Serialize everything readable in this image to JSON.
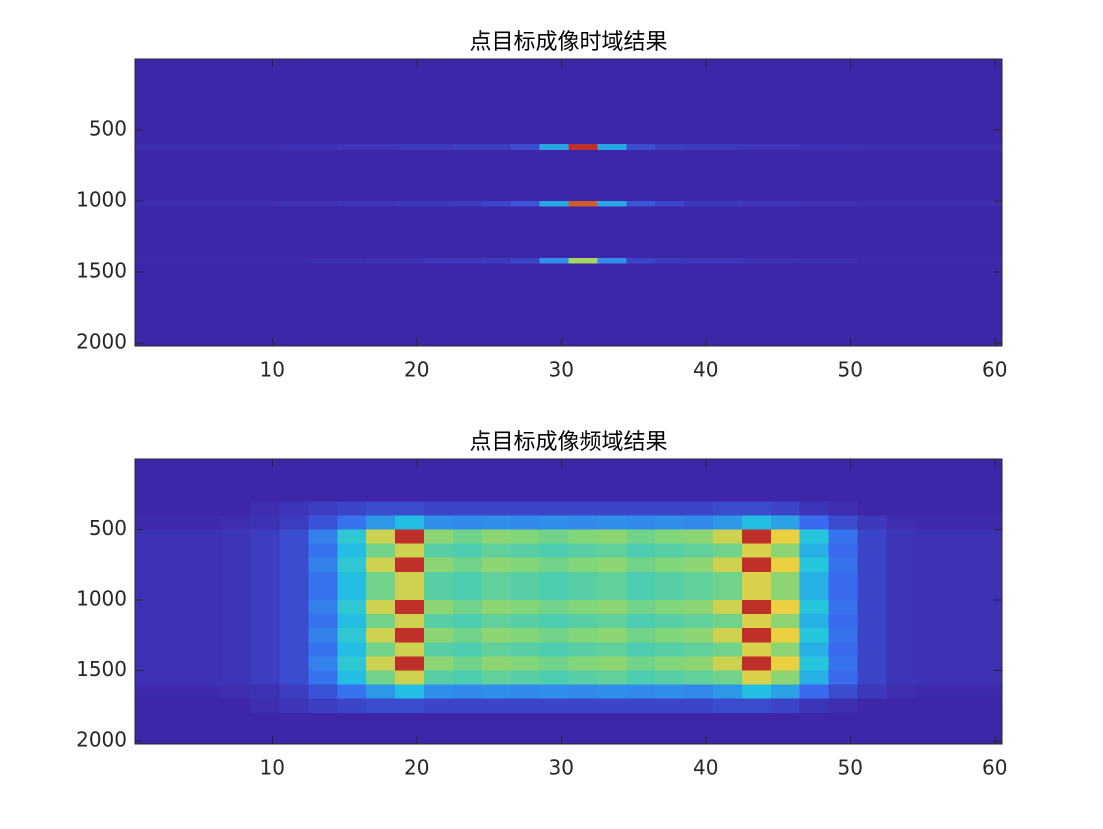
{
  "chart_data": [
    {
      "type": "heatmap",
      "title": "点目标成像时域结果",
      "xlim": [
        0.5,
        60.5
      ],
      "ylim": [
        0,
        2021
      ],
      "y_reversed": true,
      "xticks": [
        10,
        20,
        30,
        40,
        50,
        60
      ],
      "yticks": [
        500,
        1000,
        1500,
        2000
      ],
      "colormap": [
        "#3e26a8",
        "#3a6cf0",
        "#21c4e0",
        "#7fd67a",
        "#f5d03a",
        "#c0302a"
      ],
      "x_bins": [
        0.5,
        2.5,
        4.5,
        6.5,
        8.5,
        10.5,
        12.5,
        14.5,
        16.5,
        18.5,
        20.5,
        22.5,
        24.5,
        26.5,
        28.5,
        30.5,
        32.5,
        34.5,
        36.5,
        38.5,
        40.5,
        42.5,
        44.5,
        46.5,
        48.5,
        50.5,
        52.5,
        54.5,
        56.5,
        58.5,
        60.5
      ],
      "y_bins": [
        0,
        600,
        640,
        1000,
        1040,
        1400,
        1440,
        2021
      ],
      "z": [
        [
          0,
          0,
          0,
          0,
          0,
          0,
          0,
          0,
          0,
          0,
          0,
          0,
          0,
          0,
          0,
          0,
          0,
          0,
          0,
          0,
          0,
          0,
          0,
          0,
          0,
          0,
          0,
          0,
          0,
          0
        ],
        [
          0.02,
          0.02,
          0.02,
          0.02,
          0.02,
          0.03,
          0.03,
          0.04,
          0.04,
          0.05,
          0.05,
          0.06,
          0.06,
          0.1,
          0.3,
          0.9,
          0.3,
          0.1,
          0.06,
          0.05,
          0.05,
          0.04,
          0.04,
          0.03,
          0.03,
          0.02,
          0.02,
          0.02,
          0.02,
          0.02
        ],
        [
          0,
          0,
          0,
          0,
          0,
          0,
          0,
          0,
          0,
          0,
          0,
          0,
          0,
          0,
          0,
          0,
          0,
          0,
          0,
          0,
          0,
          0,
          0,
          0,
          0,
          0,
          0,
          0,
          0,
          0
        ],
        [
          0.02,
          0.02,
          0.02,
          0.02,
          0.02,
          0.03,
          0.03,
          0.04,
          0.04,
          0.05,
          0.05,
          0.06,
          0.08,
          0.12,
          0.3,
          0.85,
          0.3,
          0.12,
          0.08,
          0.05,
          0.05,
          0.04,
          0.04,
          0.03,
          0.03,
          0.02,
          0.02,
          0.02,
          0.02,
          0.02
        ],
        [
          0,
          0,
          0,
          0,
          0,
          0,
          0,
          0,
          0,
          0,
          0,
          0,
          0,
          0,
          0,
          0,
          0,
          0,
          0,
          0,
          0,
          0,
          0,
          0,
          0,
          0,
          0,
          0,
          0,
          0
        ],
        [
          0.01,
          0.01,
          0.01,
          0.01,
          0.01,
          0.01,
          0.02,
          0.02,
          0.03,
          0.03,
          0.04,
          0.04,
          0.05,
          0.08,
          0.25,
          0.6,
          0.25,
          0.08,
          0.05,
          0.04,
          0.04,
          0.03,
          0.03,
          0.02,
          0.02,
          0.01,
          0.01,
          0.01,
          0.01,
          0.01
        ],
        [
          0,
          0,
          0,
          0,
          0,
          0,
          0,
          0,
          0,
          0,
          0,
          0,
          0,
          0,
          0,
          0,
          0,
          0,
          0,
          0,
          0,
          0,
          0,
          0,
          0,
          0,
          0,
          0,
          0,
          0
        ]
      ]
    },
    {
      "type": "heatmap",
      "title": "点目标成像频域结果",
      "xlim": [
        0.5,
        60.5
      ],
      "ylim": [
        0,
        2021
      ],
      "y_reversed": true,
      "xticks": [
        10,
        20,
        30,
        40,
        50,
        60
      ],
      "yticks": [
        500,
        1000,
        1500,
        2000
      ],
      "colormap": [
        "#3e26a8",
        "#3a6cf0",
        "#21c4e0",
        "#7fd67a",
        "#f5d03a",
        "#c0302a"
      ],
      "x_bins": [
        0.5,
        2.5,
        4.5,
        6.5,
        8.5,
        10.5,
        12.5,
        14.5,
        16.5,
        18.5,
        20.5,
        22.5,
        24.5,
        26.5,
        28.5,
        30.5,
        32.5,
        34.5,
        36.5,
        38.5,
        40.5,
        42.5,
        44.5,
        46.5,
        48.5,
        50.5,
        52.5,
        54.5,
        56.5,
        58.5,
        60.5
      ],
      "y_bins": [
        0,
        100,
        200,
        300,
        400,
        500,
        600,
        700,
        800,
        900,
        1000,
        1100,
        1200,
        1300,
        1400,
        1500,
        1600,
        1700,
        1800,
        1900,
        2021
      ],
      "z": [
        [
          0.02,
          0.02,
          0.02,
          0.02,
          0.02,
          0.02,
          0.02,
          0.02,
          0.02,
          0.02,
          0.02,
          0.02,
          0.02,
          0.02,
          0.02,
          0.02,
          0.02,
          0.02,
          0.02,
          0.02,
          0.02,
          0.02,
          0.02,
          0.02,
          0.02,
          0.02,
          0.02,
          0.02,
          0.02,
          0.02
        ],
        [
          0.02,
          0.02,
          0.02,
          0.02,
          0.02,
          0.02,
          0.02,
          0.02,
          0.02,
          0.02,
          0.02,
          0.02,
          0.02,
          0.02,
          0.02,
          0.02,
          0.02,
          0.02,
          0.02,
          0.02,
          0.02,
          0.02,
          0.02,
          0.02,
          0.02,
          0.02,
          0.02,
          0.02,
          0.02,
          0.02
        ],
        [
          0.02,
          0.02,
          0.02,
          0.02,
          0.02,
          0.02,
          0.02,
          0.02,
          0.02,
          0.02,
          0.02,
          0.02,
          0.02,
          0.02,
          0.02,
          0.02,
          0.02,
          0.02,
          0.02,
          0.02,
          0.02,
          0.02,
          0.02,
          0.02,
          0.02,
          0.02,
          0.02,
          0.02,
          0.02,
          0.02
        ],
        [
          0.02,
          0.02,
          0.02,
          0.02,
          0.04,
          0.06,
          0.08,
          0.1,
          0.12,
          0.12,
          0.1,
          0.1,
          0.1,
          0.1,
          0.1,
          0.1,
          0.1,
          0.1,
          0.1,
          0.1,
          0.12,
          0.12,
          0.1,
          0.06,
          0.04,
          0.02,
          0.02,
          0.02,
          0.02,
          0.02
        ],
        [
          0.03,
          0.03,
          0.03,
          0.04,
          0.05,
          0.08,
          0.14,
          0.22,
          0.3,
          0.38,
          0.28,
          0.27,
          0.28,
          0.27,
          0.28,
          0.27,
          0.28,
          0.27,
          0.28,
          0.27,
          0.3,
          0.38,
          0.32,
          0.2,
          0.12,
          0.07,
          0.04,
          0.03,
          0.03,
          0.03
        ],
        [
          0.05,
          0.05,
          0.05,
          0.06,
          0.08,
          0.12,
          0.25,
          0.42,
          0.7,
          0.95,
          0.6,
          0.55,
          0.6,
          0.58,
          0.55,
          0.58,
          0.6,
          0.55,
          0.58,
          0.6,
          0.7,
          0.95,
          0.75,
          0.4,
          0.22,
          0.1,
          0.06,
          0.05,
          0.05,
          0.05
        ],
        [
          0.05,
          0.05,
          0.05,
          0.06,
          0.08,
          0.12,
          0.22,
          0.38,
          0.55,
          0.7,
          0.5,
          0.48,
          0.52,
          0.5,
          0.48,
          0.5,
          0.52,
          0.48,
          0.5,
          0.52,
          0.55,
          0.72,
          0.6,
          0.35,
          0.2,
          0.1,
          0.06,
          0.05,
          0.05,
          0.05
        ],
        [
          0.05,
          0.05,
          0.05,
          0.06,
          0.08,
          0.12,
          0.25,
          0.42,
          0.7,
          0.95,
          0.6,
          0.55,
          0.6,
          0.58,
          0.55,
          0.58,
          0.6,
          0.55,
          0.58,
          0.6,
          0.7,
          0.95,
          0.75,
          0.4,
          0.22,
          0.1,
          0.06,
          0.05,
          0.05,
          0.05
        ],
        [
          0.05,
          0.05,
          0.05,
          0.06,
          0.08,
          0.12,
          0.22,
          0.38,
          0.55,
          0.7,
          0.5,
          0.48,
          0.52,
          0.5,
          0.48,
          0.5,
          0.52,
          0.48,
          0.5,
          0.52,
          0.55,
          0.72,
          0.6,
          0.35,
          0.2,
          0.1,
          0.06,
          0.05,
          0.05,
          0.05
        ],
        [
          0.05,
          0.05,
          0.05,
          0.06,
          0.08,
          0.12,
          0.22,
          0.38,
          0.55,
          0.7,
          0.5,
          0.48,
          0.52,
          0.5,
          0.48,
          0.5,
          0.52,
          0.48,
          0.5,
          0.52,
          0.55,
          0.72,
          0.6,
          0.35,
          0.2,
          0.1,
          0.06,
          0.05,
          0.05,
          0.05
        ],
        [
          0.05,
          0.05,
          0.05,
          0.06,
          0.08,
          0.12,
          0.25,
          0.42,
          0.7,
          0.95,
          0.6,
          0.55,
          0.6,
          0.58,
          0.55,
          0.58,
          0.6,
          0.55,
          0.58,
          0.6,
          0.7,
          0.95,
          0.75,
          0.4,
          0.22,
          0.1,
          0.06,
          0.05,
          0.05,
          0.05
        ],
        [
          0.05,
          0.05,
          0.05,
          0.06,
          0.08,
          0.12,
          0.22,
          0.38,
          0.55,
          0.7,
          0.5,
          0.48,
          0.52,
          0.5,
          0.48,
          0.5,
          0.52,
          0.48,
          0.5,
          0.52,
          0.55,
          0.72,
          0.6,
          0.35,
          0.2,
          0.1,
          0.06,
          0.05,
          0.05,
          0.05
        ],
        [
          0.05,
          0.05,
          0.05,
          0.06,
          0.08,
          0.12,
          0.25,
          0.42,
          0.7,
          0.95,
          0.6,
          0.55,
          0.6,
          0.58,
          0.55,
          0.58,
          0.6,
          0.55,
          0.58,
          0.6,
          0.7,
          0.95,
          0.75,
          0.4,
          0.22,
          0.1,
          0.06,
          0.05,
          0.05,
          0.05
        ],
        [
          0.05,
          0.05,
          0.05,
          0.06,
          0.08,
          0.12,
          0.22,
          0.38,
          0.55,
          0.7,
          0.5,
          0.48,
          0.52,
          0.5,
          0.48,
          0.5,
          0.52,
          0.48,
          0.5,
          0.52,
          0.55,
          0.72,
          0.6,
          0.35,
          0.2,
          0.1,
          0.06,
          0.05,
          0.05,
          0.05
        ],
        [
          0.05,
          0.05,
          0.05,
          0.06,
          0.08,
          0.12,
          0.25,
          0.42,
          0.7,
          0.95,
          0.6,
          0.55,
          0.6,
          0.58,
          0.55,
          0.58,
          0.6,
          0.55,
          0.58,
          0.6,
          0.7,
          0.95,
          0.75,
          0.4,
          0.22,
          0.1,
          0.06,
          0.05,
          0.05,
          0.05
        ],
        [
          0.05,
          0.05,
          0.05,
          0.06,
          0.08,
          0.12,
          0.22,
          0.38,
          0.55,
          0.7,
          0.5,
          0.48,
          0.52,
          0.5,
          0.48,
          0.5,
          0.52,
          0.48,
          0.5,
          0.52,
          0.55,
          0.72,
          0.6,
          0.35,
          0.2,
          0.1,
          0.06,
          0.05,
          0.05,
          0.05
        ],
        [
          0.03,
          0.03,
          0.03,
          0.04,
          0.05,
          0.08,
          0.14,
          0.22,
          0.3,
          0.38,
          0.28,
          0.27,
          0.28,
          0.27,
          0.28,
          0.27,
          0.28,
          0.27,
          0.28,
          0.27,
          0.3,
          0.38,
          0.32,
          0.2,
          0.12,
          0.07,
          0.04,
          0.03,
          0.03,
          0.03
        ],
        [
          0.02,
          0.02,
          0.02,
          0.02,
          0.04,
          0.06,
          0.08,
          0.1,
          0.12,
          0.12,
          0.1,
          0.1,
          0.1,
          0.1,
          0.1,
          0.1,
          0.1,
          0.1,
          0.1,
          0.1,
          0.12,
          0.12,
          0.1,
          0.06,
          0.04,
          0.02,
          0.02,
          0.02,
          0.02,
          0.02
        ],
        [
          0.02,
          0.02,
          0.02,
          0.02,
          0.02,
          0.02,
          0.02,
          0.02,
          0.02,
          0.02,
          0.02,
          0.02,
          0.02,
          0.02,
          0.02,
          0.02,
          0.02,
          0.02,
          0.02,
          0.02,
          0.02,
          0.02,
          0.02,
          0.02,
          0.02,
          0.02,
          0.02,
          0.02,
          0.02,
          0.02
        ],
        [
          0.02,
          0.02,
          0.02,
          0.02,
          0.02,
          0.02,
          0.02,
          0.02,
          0.02,
          0.02,
          0.02,
          0.02,
          0.02,
          0.02,
          0.02,
          0.02,
          0.02,
          0.02,
          0.02,
          0.02,
          0.02,
          0.02,
          0.02,
          0.02,
          0.02,
          0.02,
          0.02,
          0.02,
          0.02,
          0.02
        ]
      ]
    }
  ]
}
